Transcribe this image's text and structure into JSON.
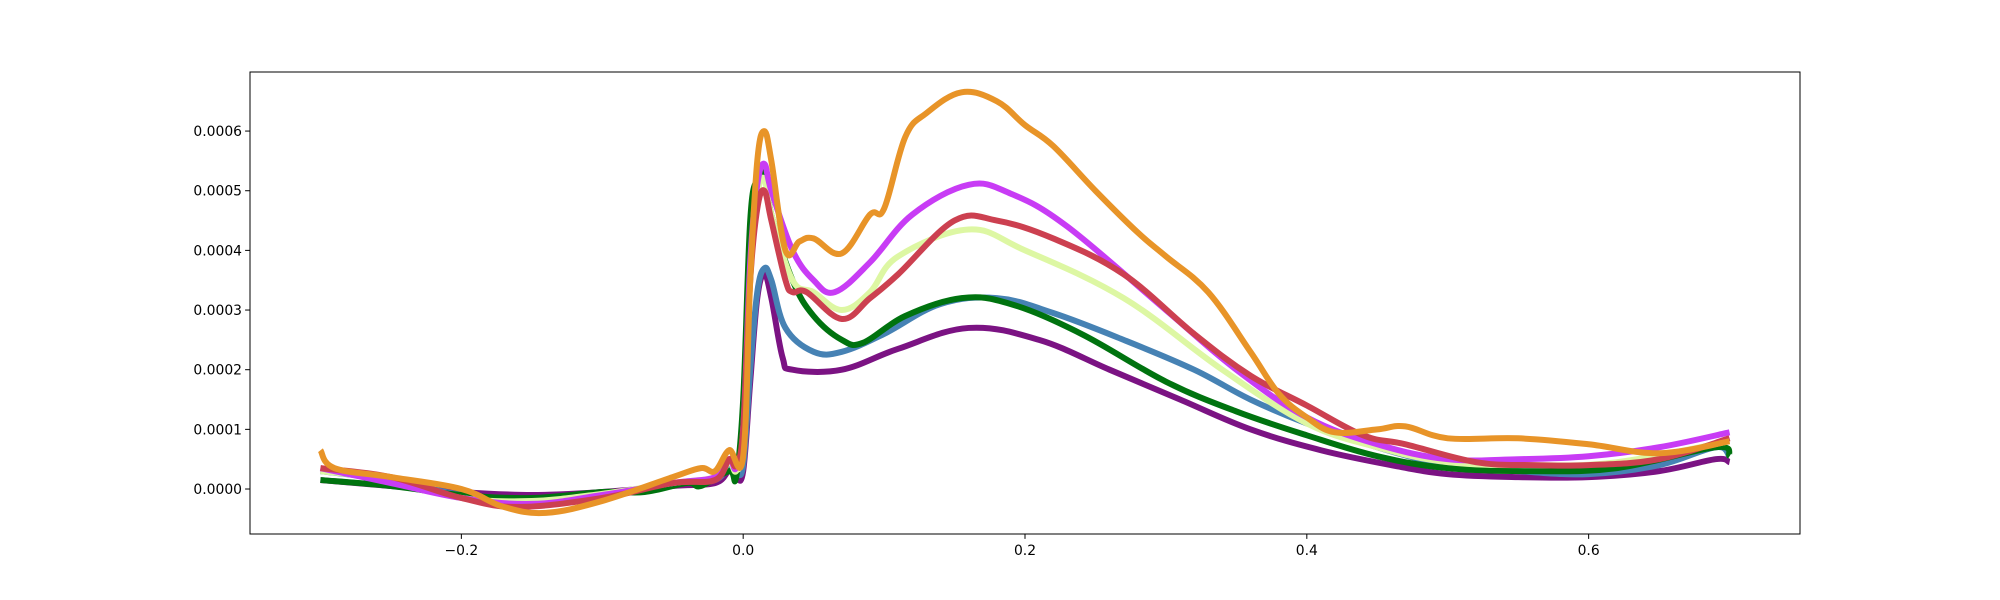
{
  "chart_data": {
    "type": "line",
    "title": "",
    "xlabel": "",
    "ylabel": "",
    "xlim": [
      -0.35,
      0.75
    ],
    "ylim": [
      -7.54e-05,
      0.000699
    ],
    "grid": false,
    "legend": "none",
    "xticks": [
      {
        "value": -0.2,
        "label": "−0.2"
      },
      {
        "value": 0.0,
        "label": "0.0"
      },
      {
        "value": 0.2,
        "label": "0.2"
      },
      {
        "value": 0.4,
        "label": "0.4"
      },
      {
        "value": 0.6,
        "label": "0.6"
      }
    ],
    "yticks": [
      {
        "value": 0.0,
        "label": "0.0000"
      },
      {
        "value": 0.0001,
        "label": "0.0001"
      },
      {
        "value": 0.0002,
        "label": "0.0002"
      },
      {
        "value": 0.0003,
        "label": "0.0003"
      },
      {
        "value": 0.0004,
        "label": "0.0004"
      },
      {
        "value": 0.0005,
        "label": "0.0005"
      },
      {
        "value": 0.0006,
        "label": "0.0006"
      }
    ],
    "series": [
      {
        "color": "#7b1383",
        "points": [
          [
            -0.3,
            0.15
          ],
          [
            -0.25,
            0.05
          ],
          [
            -0.2,
            -0.05
          ],
          [
            -0.15,
            -0.1
          ],
          [
            -0.1,
            -0.05
          ],
          [
            -0.05,
            0.05
          ],
          [
            -0.02,
            0.1
          ],
          [
            -0.01,
            0.3
          ],
          [
            -0.005,
            0.2
          ],
          [
            0.0,
            0.3
          ],
          [
            0.005,
            1.8
          ],
          [
            0.01,
            3.2
          ],
          [
            0.015,
            3.6
          ],
          [
            0.02,
            3.2
          ],
          [
            0.028,
            2.2
          ],
          [
            0.035,
            2.0
          ],
          [
            0.07,
            2.0
          ],
          [
            0.11,
            2.35
          ],
          [
            0.16,
            2.7
          ],
          [
            0.21,
            2.5
          ],
          [
            0.26,
            2.0
          ],
          [
            0.31,
            1.5
          ],
          [
            0.36,
            1.0
          ],
          [
            0.41,
            0.65
          ],
          [
            0.46,
            0.4
          ],
          [
            0.5,
            0.25
          ],
          [
            0.55,
            0.2
          ],
          [
            0.6,
            0.2
          ],
          [
            0.65,
            0.3
          ],
          [
            0.69,
            0.5
          ],
          [
            0.7,
            0.45
          ]
        ]
      },
      {
        "color": "#4682b4",
        "points": [
          [
            -0.3,
            0.3
          ],
          [
            -0.25,
            0.15
          ],
          [
            -0.2,
            -0.1
          ],
          [
            -0.15,
            -0.2
          ],
          [
            -0.1,
            -0.08
          ],
          [
            -0.05,
            0.08
          ],
          [
            -0.02,
            0.15
          ],
          [
            -0.01,
            0.4
          ],
          [
            -0.005,
            0.3
          ],
          [
            0.0,
            0.4
          ],
          [
            0.005,
            2.0
          ],
          [
            0.01,
            3.3
          ],
          [
            0.015,
            3.7
          ],
          [
            0.02,
            3.5
          ],
          [
            0.03,
            2.7
          ],
          [
            0.05,
            2.3
          ],
          [
            0.07,
            2.3
          ],
          [
            0.1,
            2.6
          ],
          [
            0.14,
            3.1
          ],
          [
            0.18,
            3.2
          ],
          [
            0.22,
            2.95
          ],
          [
            0.27,
            2.5
          ],
          [
            0.32,
            2.0
          ],
          [
            0.36,
            1.5
          ],
          [
            0.4,
            1.1
          ],
          [
            0.45,
            0.7
          ],
          [
            0.5,
            0.4
          ],
          [
            0.55,
            0.3
          ],
          [
            0.6,
            0.25
          ],
          [
            0.65,
            0.4
          ],
          [
            0.69,
            0.7
          ],
          [
            0.7,
            0.55
          ]
        ]
      },
      {
        "color": "#00730f",
        "points": [
          [
            -0.3,
            0.15
          ],
          [
            -0.25,
            0.05
          ],
          [
            -0.2,
            -0.1
          ],
          [
            -0.15,
            -0.15
          ],
          [
            -0.1,
            -0.05
          ],
          [
            -0.07,
            -0.05
          ],
          [
            -0.04,
            0.1
          ],
          [
            -0.03,
            0.05
          ],
          [
            -0.01,
            0.3
          ],
          [
            -0.005,
            0.2
          ],
          [
            0.0,
            1.5
          ],
          [
            0.005,
            4.5
          ],
          [
            0.01,
            5.2
          ],
          [
            0.015,
            5.3
          ],
          [
            0.02,
            4.6
          ],
          [
            0.035,
            3.5
          ],
          [
            0.05,
            2.9
          ],
          [
            0.07,
            2.5
          ],
          [
            0.085,
            2.45
          ],
          [
            0.115,
            2.9
          ],
          [
            0.155,
            3.2
          ],
          [
            0.19,
            3.1
          ],
          [
            0.24,
            2.6
          ],
          [
            0.3,
            1.8
          ],
          [
            0.35,
            1.3
          ],
          [
            0.4,
            0.9
          ],
          [
            0.45,
            0.55
          ],
          [
            0.5,
            0.35
          ],
          [
            0.56,
            0.3
          ],
          [
            0.62,
            0.35
          ],
          [
            0.69,
            0.7
          ],
          [
            0.7,
            0.55
          ]
        ]
      },
      {
        "color": "#ddf7a3",
        "points": [
          [
            -0.3,
            0.3
          ],
          [
            -0.25,
            0.15
          ],
          [
            -0.2,
            -0.15
          ],
          [
            -0.15,
            -0.2
          ],
          [
            -0.1,
            -0.08
          ],
          [
            -0.05,
            0.1
          ],
          [
            -0.02,
            0.2
          ],
          [
            -0.01,
            0.45
          ],
          [
            -0.005,
            0.3
          ],
          [
            0.0,
            0.8
          ],
          [
            0.005,
            3.5
          ],
          [
            0.01,
            4.9
          ],
          [
            0.015,
            5.2
          ],
          [
            0.02,
            4.6
          ],
          [
            0.035,
            3.5
          ],
          [
            0.05,
            3.3
          ],
          [
            0.07,
            3.0
          ],
          [
            0.09,
            3.3
          ],
          [
            0.11,
            3.9
          ],
          [
            0.16,
            4.35
          ],
          [
            0.2,
            4.0
          ],
          [
            0.27,
            3.2
          ],
          [
            0.34,
            2.0
          ],
          [
            0.4,
            1.1
          ],
          [
            0.45,
            0.7
          ],
          [
            0.5,
            0.45
          ],
          [
            0.56,
            0.4
          ],
          [
            0.62,
            0.45
          ],
          [
            0.7,
            0.8
          ]
        ]
      },
      {
        "color": "#c83cf5",
        "points": [
          [
            -0.3,
            0.35
          ],
          [
            -0.25,
            0.1
          ],
          [
            -0.2,
            -0.15
          ],
          [
            -0.15,
            -0.25
          ],
          [
            -0.1,
            -0.1
          ],
          [
            -0.05,
            0.1
          ],
          [
            -0.02,
            0.2
          ],
          [
            -0.01,
            0.5
          ],
          [
            -0.005,
            0.35
          ],
          [
            0.0,
            1.0
          ],
          [
            0.005,
            3.8
          ],
          [
            0.01,
            5.1
          ],
          [
            0.015,
            5.45
          ],
          [
            0.02,
            5.0
          ],
          [
            0.035,
            4.0
          ],
          [
            0.05,
            3.5
          ],
          [
            0.065,
            3.3
          ],
          [
            0.09,
            3.8
          ],
          [
            0.12,
            4.6
          ],
          [
            0.16,
            5.1
          ],
          [
            0.19,
            4.95
          ],
          [
            0.23,
            4.4
          ],
          [
            0.3,
            3.0
          ],
          [
            0.35,
            2.0
          ],
          [
            0.4,
            1.2
          ],
          [
            0.45,
            0.75
          ],
          [
            0.5,
            0.5
          ],
          [
            0.55,
            0.5
          ],
          [
            0.6,
            0.55
          ],
          [
            0.65,
            0.7
          ],
          [
            0.7,
            0.95
          ]
        ]
      },
      {
        "color": "#cc4050",
        "points": [
          [
            -0.3,
            0.35
          ],
          [
            -0.25,
            0.2
          ],
          [
            -0.2,
            -0.15
          ],
          [
            -0.16,
            -0.3
          ],
          [
            -0.1,
            -0.15
          ],
          [
            -0.05,
            0.1
          ],
          [
            -0.02,
            0.15
          ],
          [
            -0.01,
            0.5
          ],
          [
            -0.005,
            0.4
          ],
          [
            0.0,
            1.0
          ],
          [
            0.005,
            3.5
          ],
          [
            0.01,
            4.7
          ],
          [
            0.015,
            5.0
          ],
          [
            0.02,
            4.5
          ],
          [
            0.03,
            3.5
          ],
          [
            0.035,
            3.3
          ],
          [
            0.045,
            3.3
          ],
          [
            0.07,
            2.85
          ],
          [
            0.09,
            3.2
          ],
          [
            0.11,
            3.6
          ],
          [
            0.15,
            4.5
          ],
          [
            0.18,
            4.5
          ],
          [
            0.22,
            4.2
          ],
          [
            0.27,
            3.6
          ],
          [
            0.32,
            2.6
          ],
          [
            0.36,
            1.9
          ],
          [
            0.4,
            1.4
          ],
          [
            0.44,
            0.9
          ],
          [
            0.47,
            0.75
          ],
          [
            0.52,
            0.45
          ],
          [
            0.56,
            0.4
          ],
          [
            0.6,
            0.4
          ],
          [
            0.65,
            0.5
          ],
          [
            0.7,
            0.85
          ]
        ]
      },
      {
        "color": "#e89428",
        "points": [
          [
            -0.3,
            0.65
          ],
          [
            -0.29,
            0.35
          ],
          [
            -0.25,
            0.2
          ],
          [
            -0.2,
            0.0
          ],
          [
            -0.17,
            -0.3
          ],
          [
            -0.14,
            -0.4
          ],
          [
            -0.1,
            -0.2
          ],
          [
            -0.05,
            0.2
          ],
          [
            -0.03,
            0.35
          ],
          [
            -0.02,
            0.3
          ],
          [
            -0.01,
            0.65
          ],
          [
            0.0,
            0.55
          ],
          [
            0.005,
            3.5
          ],
          [
            0.01,
            5.5
          ],
          [
            0.015,
            6.0
          ],
          [
            0.02,
            5.5
          ],
          [
            0.03,
            4.0
          ],
          [
            0.04,
            4.15
          ],
          [
            0.05,
            4.2
          ],
          [
            0.07,
            3.95
          ],
          [
            0.09,
            4.6
          ],
          [
            0.1,
            4.7
          ],
          [
            0.115,
            5.9
          ],
          [
            0.13,
            6.3
          ],
          [
            0.155,
            6.65
          ],
          [
            0.18,
            6.5
          ],
          [
            0.2,
            6.1
          ],
          [
            0.22,
            5.75
          ],
          [
            0.25,
            5.0
          ],
          [
            0.28,
            4.3
          ],
          [
            0.3,
            3.9
          ],
          [
            0.33,
            3.3
          ],
          [
            0.36,
            2.3
          ],
          [
            0.38,
            1.6
          ],
          [
            0.4,
            1.2
          ],
          [
            0.42,
            0.95
          ],
          [
            0.45,
            1.0
          ],
          [
            0.47,
            1.05
          ],
          [
            0.5,
            0.85
          ],
          [
            0.55,
            0.85
          ],
          [
            0.6,
            0.75
          ],
          [
            0.65,
            0.6
          ],
          [
            0.7,
            0.8
          ]
        ]
      }
    ]
  }
}
